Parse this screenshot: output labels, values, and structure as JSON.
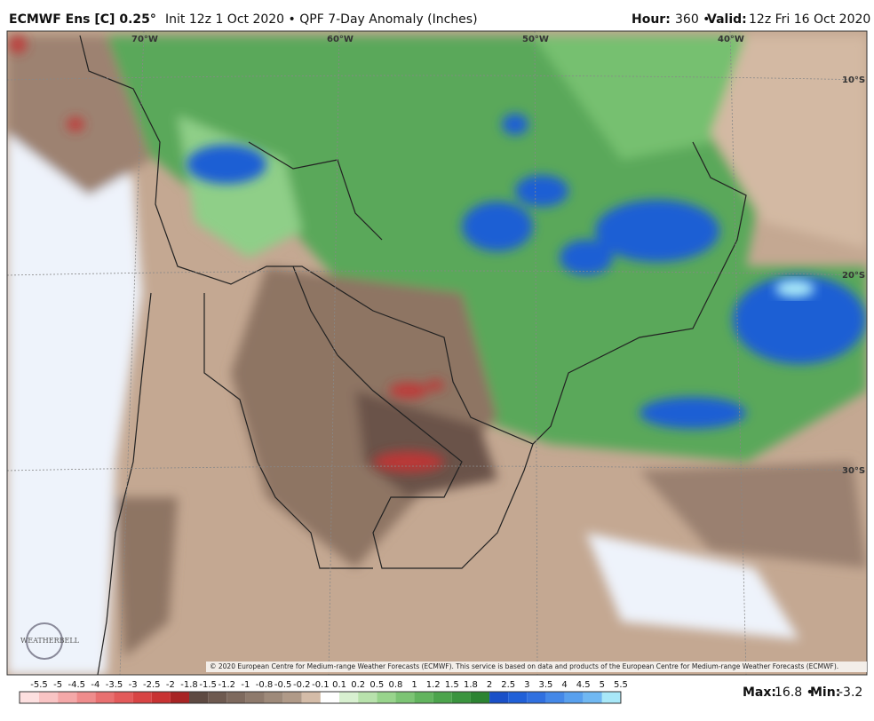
{
  "header": {
    "model": "ECMWF Ens [C] 0.25°",
    "description": "Init 12z 1 Oct 2020 • QPF 7-Day Anomaly (Inches)",
    "hour_label": "Hour:",
    "hour_value": "360 •",
    "valid_label": "Valid:",
    "valid_value": "12z Fri 16 Oct 2020"
  },
  "map": {
    "longitudes": [
      "70°W",
      "60°W",
      "50°W",
      "40°W"
    ],
    "latitudes": [
      "10°S",
      "20°S",
      "30°S"
    ],
    "copyright": "© 2020 European Centre for Medium-range Weather Forecasts (ECMWF). This service is based on data and products of the European Centre for Medium-range Weather Forecasts (ECMWF).",
    "logo": "WEATHERBELL"
  },
  "colorbar": {
    "labels": [
      "-5.5",
      "-5",
      "-4.5",
      "-4",
      "-3.5",
      "-3",
      "-2.5",
      "-2",
      "-1.8",
      "-1.5",
      "-1.2",
      "-1",
      "-0.8",
      "-0.5",
      "-0.2",
      "-0.1",
      "0.1",
      "0.2",
      "0.5",
      "0.8",
      "1",
      "1.2",
      "1.5",
      "1.8",
      "2",
      "2.5",
      "3",
      "3.5",
      "4",
      "4.5",
      "5",
      "5.5"
    ],
    "colors": [
      "#fde0e0",
      "#f9c4c4",
      "#f4a8a8",
      "#ef8c8c",
      "#e97070",
      "#e35a5a",
      "#d84444",
      "#c83232",
      "#a82424",
      "#5e4a42",
      "#6e5a50",
      "#7e6a5e",
      "#8e7a6c",
      "#9e8a7a",
      "#b09a88",
      "#d4bca8",
      "#ffffff",
      "#d8f0d0",
      "#b8e2ac",
      "#98d48c",
      "#7cc474",
      "#62b45e",
      "#4ca44c",
      "#3a943e",
      "#2c8432",
      "#1a50c8",
      "#2060d8",
      "#3070e0",
      "#4488e8",
      "#58a0ee",
      "#70b8f2",
      "#a8e8f8"
    ]
  },
  "stats": {
    "max_label": "Max:",
    "max_value": "16.8 •",
    "min_label": "Min:",
    "min_value": "-3.2"
  }
}
